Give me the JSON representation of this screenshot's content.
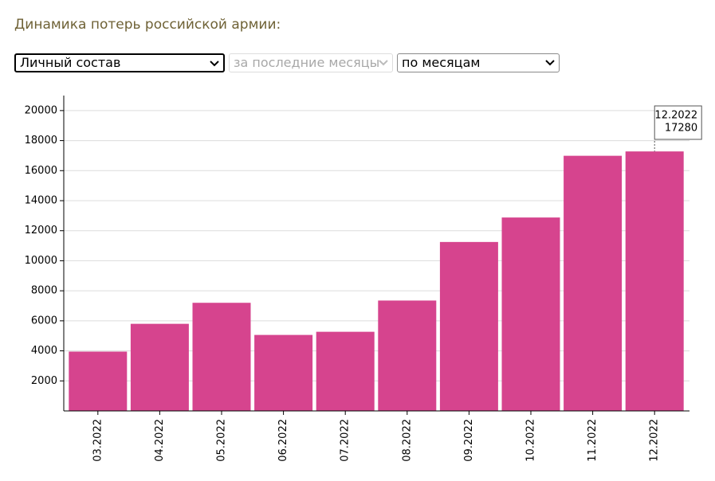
{
  "chart_data": {
    "type": "bar",
    "title": "Динамика потерь российской армии:",
    "categories": [
      "03.2022",
      "04.2022",
      "05.2022",
      "06.2022",
      "07.2022",
      "08.2022",
      "09.2022",
      "10.2022",
      "11.2022",
      "12.2022"
    ],
    "values": [
      3950,
      5800,
      7200,
      5060,
      5270,
      7350,
      11250,
      12880,
      16990,
      17280
    ],
    "color": "#d6448e",
    "ylim": [
      0,
      21000
    ],
    "yticks": [
      2000,
      4000,
      6000,
      8000,
      10000,
      12000,
      14000,
      16000,
      18000,
      20000
    ],
    "grid": true
  },
  "controls": [
    "Личный состав",
    "за последние месяцы",
    "по месяцам"
  ]
}
